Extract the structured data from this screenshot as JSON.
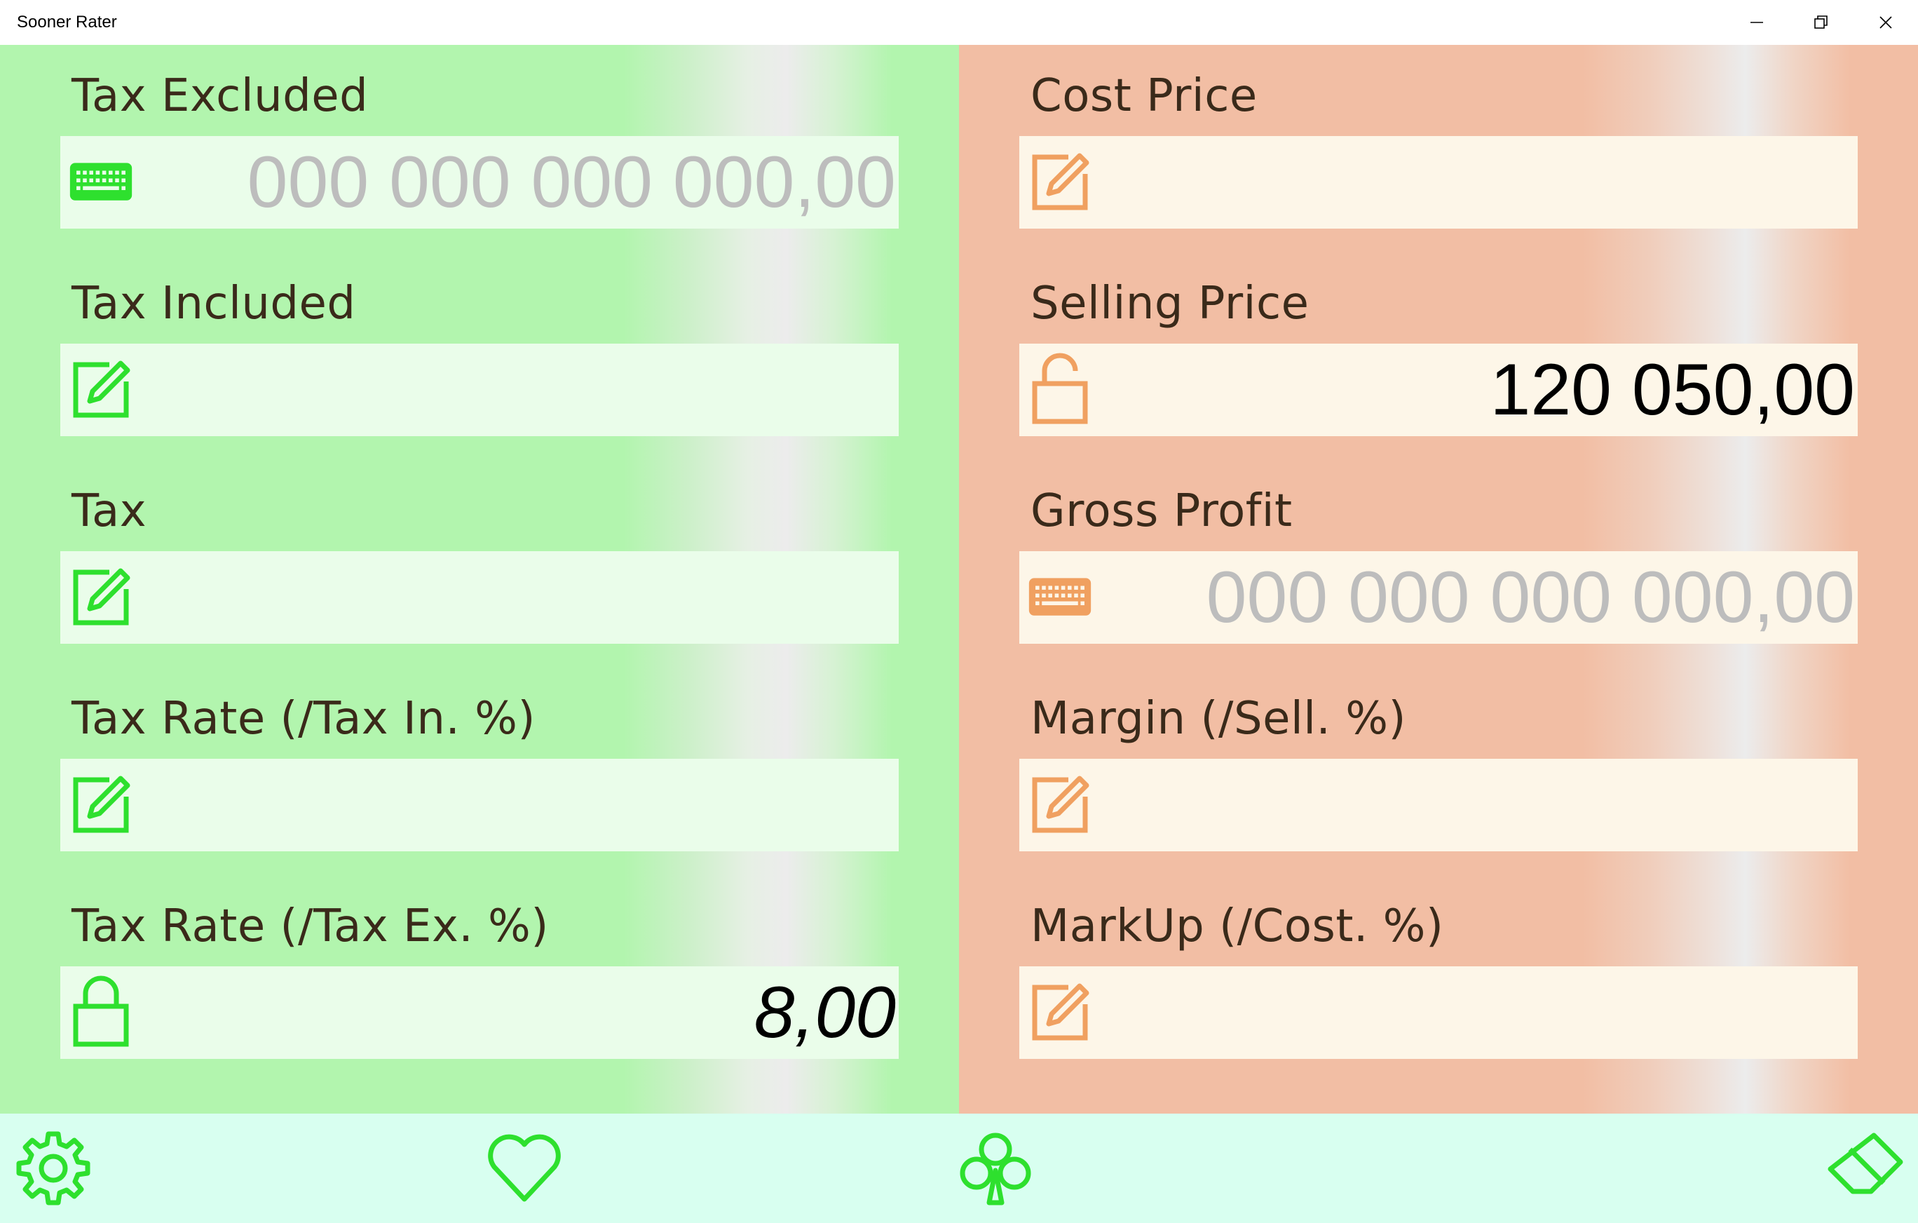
{
  "window": {
    "title": "Sooner Rater",
    "minimize_icon": "minimize-icon",
    "maximize_icon": "restore-icon",
    "close_icon": "close-icon"
  },
  "colors": {
    "green_accent": "#2ee02e",
    "orange_accent": "#f0a060",
    "left_bg": "#b2f5ae",
    "right_bg": "#f2bea4",
    "bottom_bar": "#d8fff0"
  },
  "left": {
    "fields": [
      {
        "label": "Tax Excluded",
        "icon": "keyboard-icon",
        "value": "",
        "placeholder": "000 000 000 000,00"
      },
      {
        "label": "Tax Included",
        "icon": "edit-icon",
        "value": "",
        "placeholder": ""
      },
      {
        "label": "Tax",
        "icon": "edit-icon",
        "value": "",
        "placeholder": ""
      },
      {
        "label": "Tax Rate (/Tax In. %)",
        "icon": "edit-icon",
        "value": "",
        "placeholder": ""
      },
      {
        "label": "Tax Rate (/Tax Ex. %)",
        "icon": "lock-icon",
        "value": "8,00",
        "placeholder": ""
      }
    ]
  },
  "right": {
    "fields": [
      {
        "label": "Cost Price",
        "icon": "edit-icon",
        "value": "",
        "placeholder": ""
      },
      {
        "label": "Selling Price",
        "icon": "unlock-icon",
        "value": "120 050,00",
        "placeholder": ""
      },
      {
        "label": "Gross Profit",
        "icon": "keyboard-icon",
        "value": "",
        "placeholder": "000 000 000 000,00"
      },
      {
        "label": "Margin (/Sell. %)",
        "icon": "edit-icon",
        "value": "",
        "placeholder": ""
      },
      {
        "label": "MarkUp (/Cost. %)",
        "icon": "edit-icon",
        "value": "",
        "placeholder": ""
      }
    ]
  },
  "bottom_bar": {
    "buttons": [
      "settings-icon",
      "heart-icon",
      "club-icon",
      "eraser-icon"
    ]
  }
}
